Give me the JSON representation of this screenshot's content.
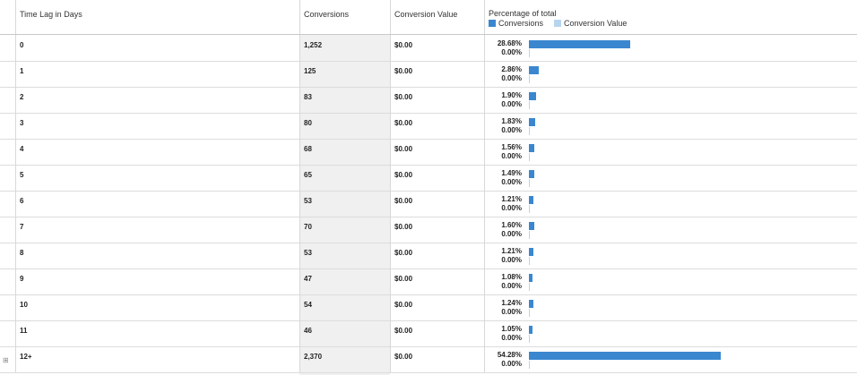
{
  "columns": {
    "time_lag": "Time Lag in Days",
    "conversions": "Conversions",
    "conversion_value": "Conversion Value",
    "percentage": "Percentage of total"
  },
  "legend": {
    "conversions": "Conversions",
    "conversion_value": "Conversion Value",
    "conversions_color": "#3a87d0",
    "conversion_value_color": "#b8d5ef"
  },
  "rows": [
    {
      "lag": "0",
      "conversions": "1,252",
      "value": "$0.00",
      "pct_conv": "28.68%",
      "pct_val": "0.00%",
      "frac": 0.2868
    },
    {
      "lag": "1",
      "conversions": "125",
      "value": "$0.00",
      "pct_conv": "2.86%",
      "pct_val": "0.00%",
      "frac": 0.0286
    },
    {
      "lag": "2",
      "conversions": "83",
      "value": "$0.00",
      "pct_conv": "1.90%",
      "pct_val": "0.00%",
      "frac": 0.019
    },
    {
      "lag": "3",
      "conversions": "80",
      "value": "$0.00",
      "pct_conv": "1.83%",
      "pct_val": "0.00%",
      "frac": 0.0183
    },
    {
      "lag": "4",
      "conversions": "68",
      "value": "$0.00",
      "pct_conv": "1.56%",
      "pct_val": "0.00%",
      "frac": 0.0156
    },
    {
      "lag": "5",
      "conversions": "65",
      "value": "$0.00",
      "pct_conv": "1.49%",
      "pct_val": "0.00%",
      "frac": 0.0149
    },
    {
      "lag": "6",
      "conversions": "53",
      "value": "$0.00",
      "pct_conv": "1.21%",
      "pct_val": "0.00%",
      "frac": 0.0121
    },
    {
      "lag": "7",
      "conversions": "70",
      "value": "$0.00",
      "pct_conv": "1.60%",
      "pct_val": "0.00%",
      "frac": 0.016
    },
    {
      "lag": "8",
      "conversions": "53",
      "value": "$0.00",
      "pct_conv": "1.21%",
      "pct_val": "0.00%",
      "frac": 0.0121
    },
    {
      "lag": "9",
      "conversions": "47",
      "value": "$0.00",
      "pct_conv": "1.08%",
      "pct_val": "0.00%",
      "frac": 0.0108
    },
    {
      "lag": "10",
      "conversions": "54",
      "value": "$0.00",
      "pct_conv": "1.24%",
      "pct_val": "0.00%",
      "frac": 0.0124
    },
    {
      "lag": "11",
      "conversions": "46",
      "value": "$0.00",
      "pct_conv": "1.05%",
      "pct_val": "0.00%",
      "frac": 0.0105
    },
    {
      "lag": "12+",
      "conversions": "2,370",
      "value": "$0.00",
      "pct_conv": "54.28%",
      "pct_val": "0.00%",
      "frac": 0.5428,
      "expandable": true,
      "expander_icon": "⊞"
    }
  ]
}
